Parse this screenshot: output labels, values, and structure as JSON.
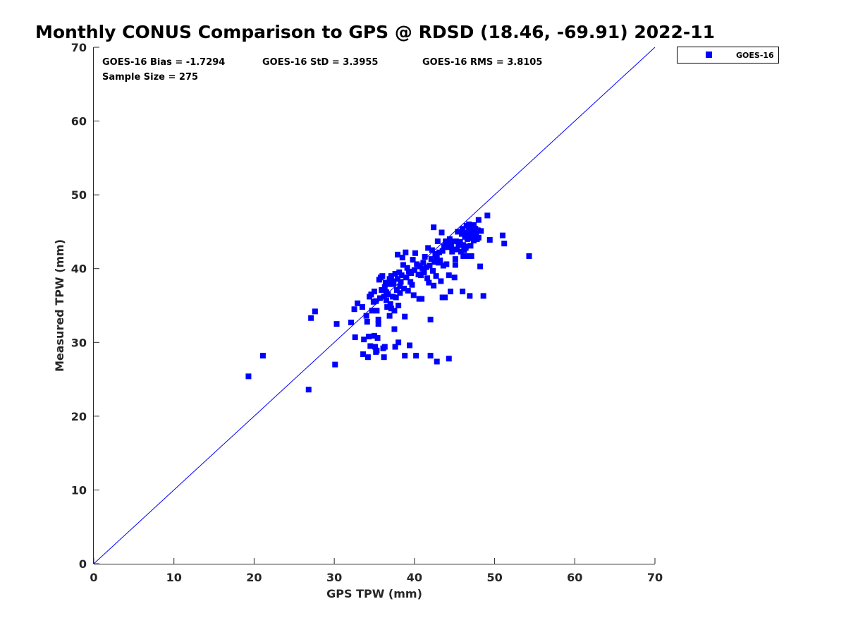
{
  "colors": {
    "series": "#0000ff",
    "axis": "#262626",
    "background": "#ffffff"
  },
  "chart_data": {
    "type": "scatter",
    "title": "Monthly CONUS Comparison to GPS @ RDSD (18.46, -69.91) 2022-11",
    "xlabel": "GPS TPW (mm)",
    "ylabel": "Measured TPW (mm)",
    "xlim": [
      0,
      70
    ],
    "ylim": [
      0,
      70
    ],
    "xticks": [
      0,
      10,
      20,
      30,
      40,
      50,
      60,
      70
    ],
    "yticks": [
      0,
      10,
      20,
      30,
      40,
      50,
      60,
      70
    ],
    "grid": false,
    "legend_position": "outside-top-right",
    "stats": {
      "bias": "GOES-16 Bias = -1.7294",
      "std": "GOES-16 StD = 3.3955",
      "rms": "GOES-16 RMS = 3.8105",
      "sample": "Sample Size = 275"
    },
    "reference_line": {
      "from": [
        0,
        0
      ],
      "to": [
        70,
        70
      ]
    },
    "series": [
      {
        "name": "GOES-16",
        "marker": "square",
        "color": "#0000ff",
        "points": [
          [
            19.3,
            25.4
          ],
          [
            21.1,
            28.2
          ],
          [
            26.8,
            23.6
          ],
          [
            27.1,
            33.3
          ],
          [
            27.6,
            34.2
          ],
          [
            30.1,
            27.0
          ],
          [
            30.3,
            32.5
          ],
          [
            32.1,
            32.7
          ],
          [
            32.5,
            34.5
          ],
          [
            32.6,
            30.7
          ],
          [
            32.9,
            35.3
          ],
          [
            33.5,
            34.8
          ],
          [
            33.6,
            28.4
          ],
          [
            33.7,
            30.4
          ],
          [
            34.0,
            33.6
          ],
          [
            34.1,
            32.8
          ],
          [
            34.2,
            28.0
          ],
          [
            34.3,
            30.8
          ],
          [
            34.4,
            36.2
          ],
          [
            34.5,
            29.5
          ],
          [
            34.6,
            36.5
          ],
          [
            34.7,
            34.3
          ],
          [
            34.9,
            35.5
          ],
          [
            35.0,
            30.9
          ],
          [
            35.1,
            29.4
          ],
          [
            35.2,
            28.7
          ],
          [
            35.3,
            28.9
          ],
          [
            35.0,
            36.9
          ],
          [
            35.2,
            35.6
          ],
          [
            35.3,
            34.3
          ],
          [
            35.4,
            30.6
          ],
          [
            35.5,
            32.5
          ],
          [
            35.5,
            33.1
          ],
          [
            35.6,
            38.5
          ],
          [
            35.7,
            36.0
          ],
          [
            35.8,
            38.8
          ],
          [
            35.9,
            37.1
          ],
          [
            36.0,
            39.0
          ],
          [
            36.1,
            29.2
          ],
          [
            36.2,
            36.2
          ],
          [
            36.2,
            28.0
          ],
          [
            36.3,
            29.4
          ],
          [
            36.3,
            37.5
          ],
          [
            36.4,
            38.1
          ],
          [
            36.5,
            36.8
          ],
          [
            36.5,
            35.7
          ],
          [
            36.6,
            34.8
          ],
          [
            36.7,
            36.5
          ],
          [
            36.8,
            37.9
          ],
          [
            36.9,
            38.6
          ],
          [
            36.9,
            33.6
          ],
          [
            37.0,
            35.2
          ],
          [
            37.1,
            39.0
          ],
          [
            37.1,
            34.6
          ],
          [
            37.2,
            38.3
          ],
          [
            37.3,
            36.2
          ],
          [
            37.4,
            37.9
          ],
          [
            37.5,
            34.3
          ],
          [
            37.5,
            31.8
          ],
          [
            37.6,
            29.4
          ],
          [
            37.6,
            39.3
          ],
          [
            37.7,
            36.1
          ],
          [
            37.8,
            37.1
          ],
          [
            37.9,
            38.6
          ],
          [
            37.9,
            41.9
          ],
          [
            38.0,
            35.0
          ],
          [
            38.0,
            30.0
          ],
          [
            38.1,
            39.5
          ],
          [
            38.2,
            37.6
          ],
          [
            38.2,
            36.7
          ],
          [
            38.3,
            38.2
          ],
          [
            38.4,
            39.1
          ],
          [
            38.5,
            41.5
          ],
          [
            38.6,
            40.5
          ],
          [
            38.7,
            37.3
          ],
          [
            38.8,
            33.5
          ],
          [
            38.8,
            28.2
          ],
          [
            38.9,
            42.2
          ],
          [
            39.0,
            38.8
          ],
          [
            39.1,
            40.1
          ],
          [
            39.2,
            37.0
          ],
          [
            39.3,
            39.6
          ],
          [
            39.4,
            29.6
          ],
          [
            39.5,
            38.2
          ],
          [
            39.6,
            39.4
          ],
          [
            39.7,
            37.8
          ],
          [
            39.8,
            41.2
          ],
          [
            39.9,
            36.4
          ],
          [
            40.0,
            39.8
          ],
          [
            40.1,
            42.1
          ],
          [
            40.2,
            28.2
          ],
          [
            40.3,
            40.6
          ],
          [
            40.5,
            39.2
          ],
          [
            40.6,
            35.9
          ],
          [
            40.7,
            40.3
          ],
          [
            40.8,
            39.1
          ],
          [
            40.9,
            35.9
          ],
          [
            41.0,
            40.0
          ],
          [
            41.1,
            40.8
          ],
          [
            41.2,
            39.5
          ],
          [
            41.3,
            41.6
          ],
          [
            41.5,
            40.2
          ],
          [
            41.6,
            38.7
          ],
          [
            41.7,
            42.8
          ],
          [
            41.8,
            38.1
          ],
          [
            41.9,
            40.4
          ],
          [
            42.0,
            33.1
          ],
          [
            42.0,
            28.2
          ],
          [
            42.1,
            41.3
          ],
          [
            42.2,
            42.5
          ],
          [
            42.3,
            39.7
          ],
          [
            42.4,
            45.6
          ],
          [
            42.4,
            37.7
          ],
          [
            42.5,
            40.9
          ],
          [
            42.6,
            42.0
          ],
          [
            42.7,
            39.0
          ],
          [
            42.8,
            41.5
          ],
          [
            42.8,
            27.4
          ],
          [
            42.9,
            43.7
          ],
          [
            43.0,
            40.8
          ],
          [
            43.1,
            42.2
          ],
          [
            43.2,
            41.1
          ],
          [
            43.3,
            38.3
          ],
          [
            43.4,
            44.9
          ],
          [
            43.5,
            36.1
          ],
          [
            43.5,
            42.4
          ],
          [
            43.6,
            40.4
          ],
          [
            43.7,
            43.0
          ],
          [
            43.8,
            36.1
          ],
          [
            43.9,
            43.7
          ],
          [
            44.0,
            40.6
          ],
          [
            44.1,
            43.4
          ],
          [
            44.2,
            42.9
          ],
          [
            44.3,
            39.1
          ],
          [
            44.3,
            27.8
          ],
          [
            44.4,
            44.0
          ],
          [
            44.5,
            36.9
          ],
          [
            44.6,
            43.0
          ],
          [
            44.7,
            42.3
          ],
          [
            44.8,
            43.7
          ],
          [
            44.9,
            42.6
          ],
          [
            45.0,
            38.8
          ],
          [
            45.1,
            41.3
          ],
          [
            45.1,
            40.5
          ],
          [
            45.2,
            43.7
          ],
          [
            45.3,
            42.6
          ],
          [
            45.4,
            45.0
          ],
          [
            45.5,
            43.2
          ],
          [
            45.7,
            43.6
          ],
          [
            45.8,
            42.3
          ],
          [
            45.9,
            44.7
          ],
          [
            46.0,
            36.9
          ],
          [
            46.0,
            45.4
          ],
          [
            46.1,
            43.2
          ],
          [
            46.1,
            41.7
          ],
          [
            46.2,
            42.5
          ],
          [
            46.3,
            44.3
          ],
          [
            46.4,
            43.0
          ],
          [
            46.4,
            42.8
          ],
          [
            46.5,
            45.8
          ],
          [
            46.5,
            44.9
          ],
          [
            46.6,
            44.0
          ],
          [
            46.7,
            41.7
          ],
          [
            46.8,
            45.3
          ],
          [
            46.8,
            46.0
          ],
          [
            46.9,
            44.6
          ],
          [
            46.9,
            36.3
          ],
          [
            47.0,
            43.1
          ],
          [
            47.0,
            45.6
          ],
          [
            47.1,
            44.8
          ],
          [
            47.1,
            41.7
          ],
          [
            47.2,
            44.1
          ],
          [
            47.3,
            45.1
          ],
          [
            47.4,
            45.9
          ],
          [
            47.4,
            43.8
          ],
          [
            47.5,
            44.4
          ],
          [
            47.6,
            45.4
          ],
          [
            47.7,
            44.6
          ],
          [
            47.8,
            44.0
          ],
          [
            47.9,
            45.2
          ],
          [
            48.0,
            44.2
          ],
          [
            48.0,
            46.6
          ],
          [
            48.2,
            40.3
          ],
          [
            48.3,
            45.1
          ],
          [
            48.6,
            36.3
          ],
          [
            49.1,
            47.2
          ],
          [
            49.4,
            43.9
          ],
          [
            51.0,
            44.5
          ],
          [
            51.2,
            43.4
          ],
          [
            54.3,
            41.7
          ]
        ]
      }
    ]
  }
}
